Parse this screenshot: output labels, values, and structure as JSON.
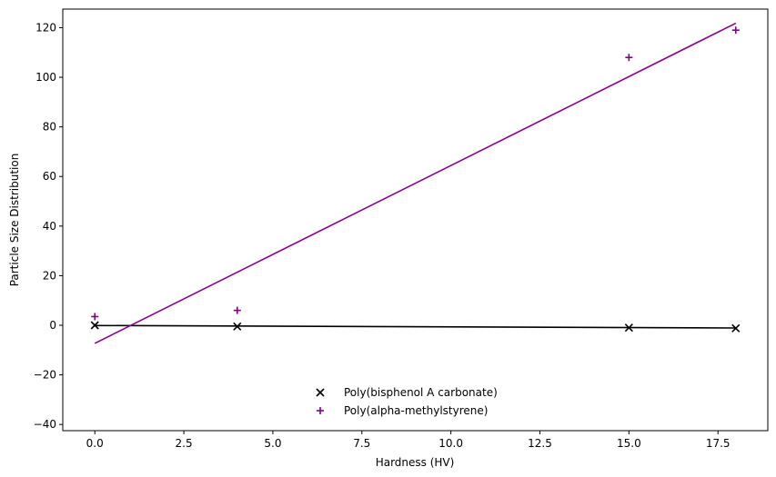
{
  "chart_data": {
    "type": "scatter",
    "title": "",
    "xlabel": "Hardness (HV)",
    "ylabel": "Particle Size Distribution",
    "xlim": [
      -0.9,
      18.9
    ],
    "ylim": [
      -42.5,
      127.5
    ],
    "xticks": [
      0.0,
      2.5,
      5.0,
      7.5,
      10.0,
      12.5,
      15.0,
      17.5
    ],
    "xtick_labels": [
      "0.0",
      "2.5",
      "5.0",
      "7.5",
      "10.0",
      "12.5",
      "15.0",
      "17.5"
    ],
    "yticks": [
      -40,
      -20,
      0,
      20,
      40,
      60,
      80,
      100,
      120
    ],
    "ytick_labels": [
      "−40",
      "−20",
      "0",
      "20",
      "40",
      "60",
      "80",
      "100",
      "120"
    ],
    "grid": false,
    "legend_position": "bottom-center",
    "series": [
      {
        "name": "Poly(bisphenol A carbonate)",
        "marker": "x",
        "color": "#000000",
        "x": [
          0,
          4,
          15,
          18
        ],
        "y": [
          0.0,
          -0.5,
          -1.0,
          -1.2
        ],
        "fit_line": {
          "x": [
            0,
            18
          ],
          "y": [
            -0.1,
            -1.1
          ]
        }
      },
      {
        "name": "Poly(alpha-methylstyrene)",
        "marker": "+",
        "color": "#800080",
        "line_color": "#8b008b",
        "x": [
          0,
          4,
          15,
          18
        ],
        "y": [
          3.5,
          6.0,
          108.0,
          119.0
        ],
        "fit_line": {
          "x": [
            0,
            18
          ],
          "y": [
            -7.3,
            121.8
          ]
        }
      }
    ]
  }
}
